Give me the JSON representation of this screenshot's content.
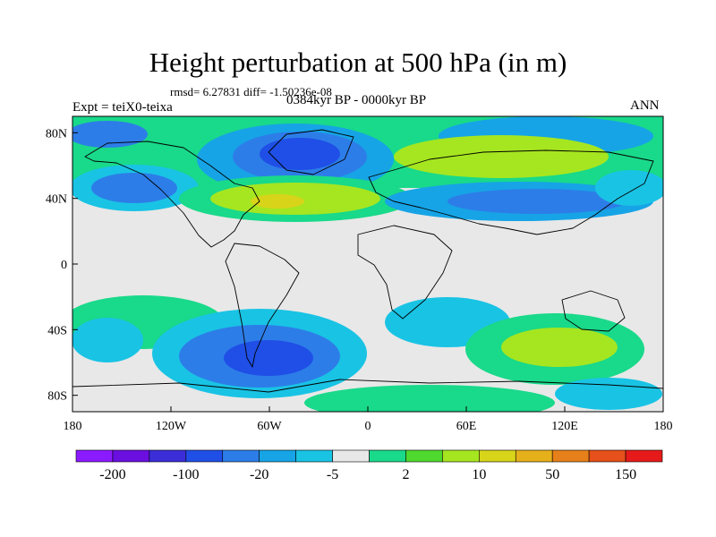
{
  "chart_data": {
    "type": "heatmap",
    "title": "Height perturbation at 500 hPa (in m)",
    "subtitle_left": "Expt = teiX0-teixa",
    "subtitle_center": "0384kyr BP - 0000kyr BP",
    "subtitle_right": "ANN",
    "stats_line": "rmsd= 6.27831 diff= -1.50236e-08",
    "projection": "cylindrical-equidistant",
    "xlim": [
      -180,
      180
    ],
    "ylim": [
      -90,
      90
    ],
    "x_ticks": [
      {
        "value": -180,
        "label": "180"
      },
      {
        "value": -120,
        "label": "120W"
      },
      {
        "value": -60,
        "label": "60W"
      },
      {
        "value": 0,
        "label": "0"
      },
      {
        "value": 60,
        "label": "60E"
      },
      {
        "value": 120,
        "label": "120E"
      },
      {
        "value": 180,
        "label": "180"
      }
    ],
    "y_ticks": [
      {
        "value": 80,
        "label": "80N"
      },
      {
        "value": 40,
        "label": "40N"
      },
      {
        "value": 0,
        "label": "0"
      },
      {
        "value": -40,
        "label": "40S"
      },
      {
        "value": -80,
        "label": "80S"
      }
    ],
    "colorbar": {
      "colors": [
        "#8c1aff",
        "#6a0fe0",
        "#3b2ed9",
        "#1f4fe6",
        "#2d7de8",
        "#16a4e6",
        "#19c3e4",
        "#e8e8e8",
        "#19d98a",
        "#4fd82e",
        "#a6e620",
        "#d8d41a",
        "#e6b01a",
        "#e6801a",
        "#e6501a",
        "#e61a1a"
      ],
      "labels": [
        {
          "text": "-200",
          "boundary": 1
        },
        {
          "text": "-100",
          "boundary": 3
        },
        {
          "text": "-20",
          "boundary": 5
        },
        {
          "text": "-5",
          "boundary": 7
        },
        {
          "text": "2",
          "boundary": 9
        },
        {
          "text": "10",
          "boundary": 11
        },
        {
          "text": "50",
          "boundary": 13
        },
        {
          "text": "150",
          "boundary": 15
        }
      ]
    }
  }
}
